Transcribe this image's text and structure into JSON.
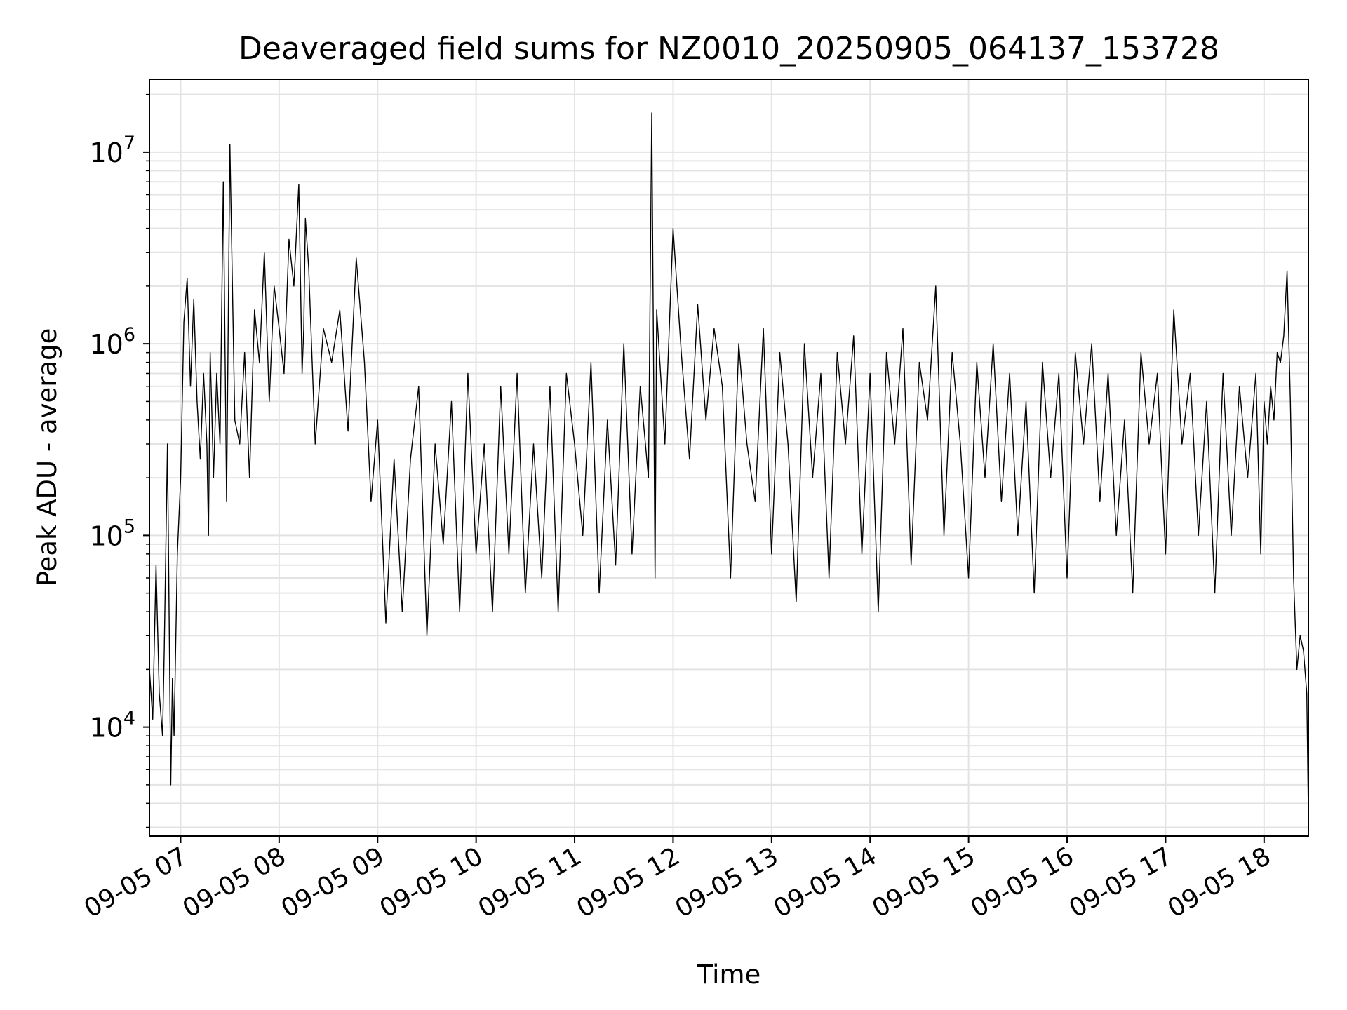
{
  "chart_data": {
    "type": "line",
    "title": "Deaveraged field sums for NZ0010_20250905_064137_153728",
    "xlabel": "Time",
    "ylabel": "Peak ADU - average",
    "yscale": "log",
    "ylim": [
      2700,
      24000000
    ],
    "xlim": [
      "09-05 06:41",
      "09-05 18:27"
    ],
    "x_ticks": [
      "09-05 07",
      "09-05 08",
      "09-05 09",
      "09-05 10",
      "09-05 11",
      "09-05 12",
      "09-05 13",
      "09-05 14",
      "09-05 15",
      "09-05 16",
      "09-05 17",
      "09-05 18"
    ],
    "y_ticks": [
      {
        "base": "10",
        "exp": "4",
        "value": 10000
      },
      {
        "base": "10",
        "exp": "5",
        "value": 100000
      },
      {
        "base": "10",
        "exp": "6",
        "value": 1000000
      },
      {
        "base": "10",
        "exp": "7",
        "value": 10000000
      }
    ],
    "grid": true,
    "line_color": "#000000",
    "series": [
      {
        "x": [
          "06:41",
          "06:43",
          "06:45",
          "06:47",
          "06:49",
          "06:50",
          "06:52",
          "06:54",
          "06:55",
          "06:56",
          "06:58",
          "07:00",
          "07:02",
          "07:04",
          "07:06",
          "07:08",
          "07:10",
          "07:12",
          "07:14",
          "07:16",
          "07:17",
          "07:18",
          "07:19",
          "07:20",
          "07:22",
          "07:24",
          "07:26",
          "07:28",
          "07:30",
          "07:33",
          "07:36",
          "07:39",
          "07:42",
          "07:45",
          "07:48",
          "07:51",
          "07:54",
          "07:57",
          "08:00",
          "08:03",
          "08:06",
          "08:09",
          "08:12",
          "08:14",
          "08:15",
          "08:16",
          "08:18",
          "08:22",
          "08:27",
          "08:32",
          "08:37",
          "08:42",
          "08:47",
          "08:52",
          "08:56",
          "09:00",
          "09:05",
          "09:10",
          "09:15",
          "09:20",
          "09:25",
          "09:30",
          "09:35",
          "09:40",
          "09:45",
          "09:50",
          "09:55",
          "10:00",
          "10:05",
          "10:10",
          "10:15",
          "10:20",
          "10:25",
          "10:30",
          "10:35",
          "10:40",
          "10:45",
          "10:50",
          "10:55",
          "11:00",
          "11:05",
          "11:10",
          "11:15",
          "11:20",
          "11:25",
          "11:30",
          "11:35",
          "11:40",
          "11:45",
          "11:47",
          "11:48",
          "11:49",
          "11:50",
          "11:55",
          "12:00",
          "12:05",
          "12:10",
          "12:15",
          "12:20",
          "12:25",
          "12:30",
          "12:35",
          "12:40",
          "12:45",
          "12:50",
          "12:55",
          "13:00",
          "13:05",
          "13:10",
          "13:15",
          "13:20",
          "13:25",
          "13:30",
          "13:35",
          "13:40",
          "13:45",
          "13:50",
          "13:55",
          "14:00",
          "14:05",
          "14:10",
          "14:15",
          "14:20",
          "14:25",
          "14:30",
          "14:35",
          "14:40",
          "14:45",
          "14:50",
          "14:55",
          "15:00",
          "15:05",
          "15:10",
          "15:15",
          "15:20",
          "15:25",
          "15:30",
          "15:35",
          "15:40",
          "15:45",
          "15:50",
          "15:55",
          "16:00",
          "16:05",
          "16:10",
          "16:15",
          "16:20",
          "16:25",
          "16:30",
          "16:35",
          "16:40",
          "16:45",
          "16:50",
          "16:55",
          "17:00",
          "17:05",
          "17:10",
          "17:15",
          "17:20",
          "17:25",
          "17:30",
          "17:35",
          "17:40",
          "17:45",
          "17:50",
          "17:55",
          "17:58",
          "18:00",
          "18:02",
          "18:04",
          "18:06",
          "18:08",
          "18:10",
          "18:12",
          "18:14",
          "18:16",
          "18:18",
          "18:20",
          "18:22",
          "18:24",
          "18:26",
          "18:27"
        ],
        "y": [
          20000,
          11000,
          70000,
          15000,
          9000,
          25000,
          300000,
          5000,
          18000,
          9000,
          80000,
          200000,
          1300000,
          2200000,
          600000,
          1700000,
          500000,
          250000,
          700000,
          300000,
          100000,
          900000,
          450000,
          200000,
          700000,
          300000,
          7000000,
          150000,
          11000000,
          400000,
          300000,
          900000,
          200000,
          1500000,
          800000,
          3000000,
          500000,
          2000000,
          1200000,
          700000,
          3500000,
          2000000,
          6800000,
          700000,
          1200000,
          4500000,
          2500000,
          300000,
          1200000,
          800000,
          1500000,
          350000,
          2800000,
          800000,
          150000,
          400000,
          35000,
          250000,
          40000,
          250000,
          600000,
          30000,
          300000,
          90000,
          500000,
          40000,
          700000,
          80000,
          300000,
          40000,
          600000,
          80000,
          700000,
          50000,
          300000,
          60000,
          600000,
          40000,
          700000,
          300000,
          100000,
          800000,
          50000,
          400000,
          70000,
          1000000,
          80000,
          600000,
          200000,
          16000000,
          1000000,
          60000,
          1500000,
          300000,
          4000000,
          900000,
          250000,
          1600000,
          400000,
          1200000,
          600000,
          60000,
          1000000,
          300000,
          150000,
          1200000,
          80000,
          900000,
          300000,
          45000,
          1000000,
          200000,
          700000,
          60000,
          900000,
          300000,
          1100000,
          80000,
          700000,
          40000,
          900000,
          300000,
          1200000,
          70000,
          800000,
          400000,
          2000000,
          100000,
          900000,
          300000,
          60000,
          800000,
          200000,
          1000000,
          150000,
          700000,
          100000,
          500000,
          50000,
          800000,
          200000,
          700000,
          60000,
          900000,
          300000,
          1000000,
          150000,
          700000,
          100000,
          400000,
          50000,
          900000,
          300000,
          700000,
          80000,
          1500000,
          300000,
          700000,
          100000,
          500000,
          50000,
          700000,
          100000,
          600000,
          200000,
          700000,
          80000,
          500000,
          300000,
          600000,
          400000,
          900000,
          800000,
          1100000,
          2400000,
          500000,
          60000,
          20000,
          30000,
          25000,
          15000,
          3500
        ]
      }
    ]
  }
}
